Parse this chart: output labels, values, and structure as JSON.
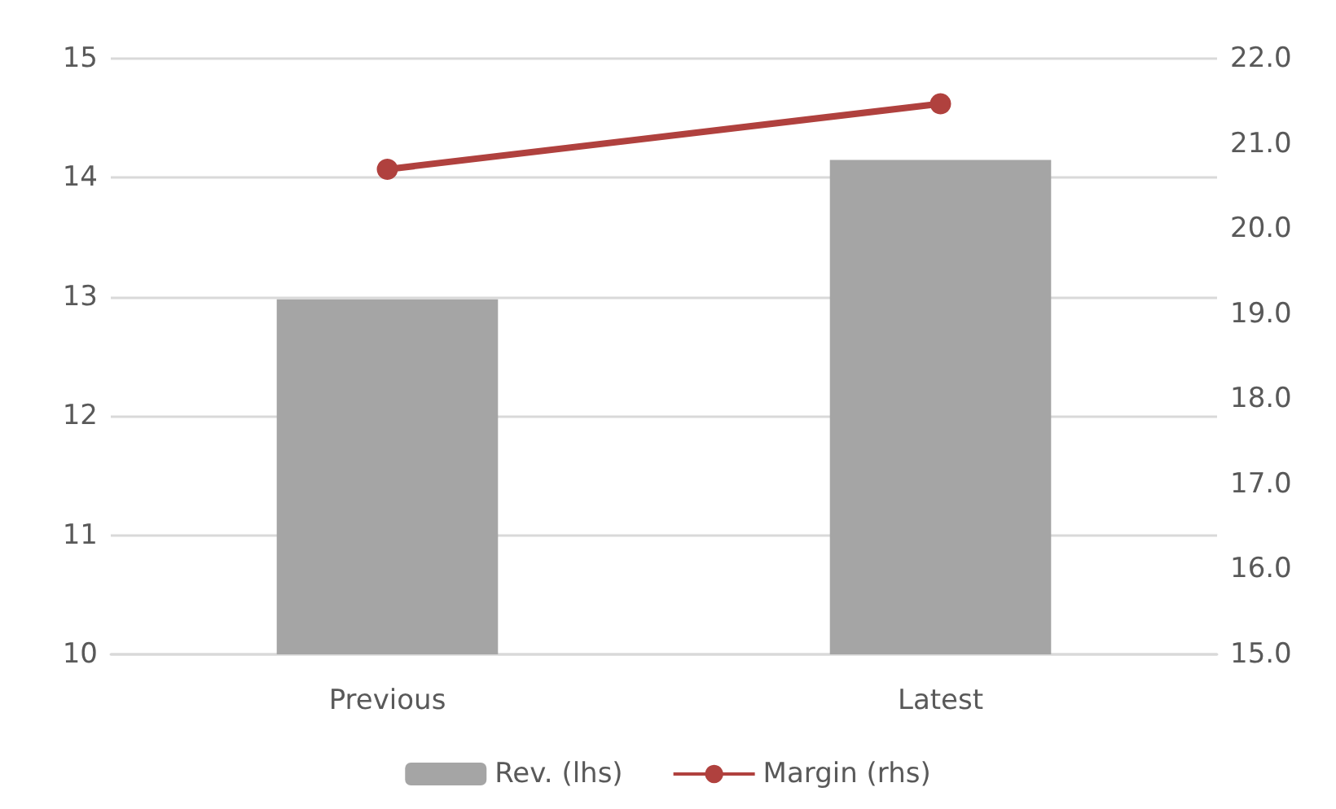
{
  "chart_data": {
    "type": "bar",
    "categories": [
      "Previous",
      "Latest"
    ],
    "series": [
      {
        "name": "Rev. (lhs)",
        "color": "#a5a5a5",
        "values": [
          12.98,
          14.15
        ]
      },
      {
        "name": "Margin (rhs)",
        "type": "line",
        "axis": "y2",
        "color": "#b0413e",
        "marker": "circle",
        "values": [
          20.7,
          21.47
        ]
      }
    ],
    "ylim": [
      10,
      15
    ],
    "yticks": [
      10,
      11,
      12,
      13,
      14,
      15
    ],
    "y2lim": [
      15,
      22
    ],
    "y2ticks": [
      {
        "value": 15,
        "label": "15.0"
      },
      {
        "value": 16,
        "label": "16.0"
      },
      {
        "value": 17,
        "label": "17.0"
      },
      {
        "value": 18,
        "label": "18.0"
      },
      {
        "value": 19,
        "label": "19.0"
      },
      {
        "value": 20,
        "label": "20.0"
      },
      {
        "value": 21,
        "label": "21.0"
      },
      {
        "value": 22,
        "label": "22.0"
      }
    ],
    "grid": "y",
    "legend": "bottom"
  }
}
